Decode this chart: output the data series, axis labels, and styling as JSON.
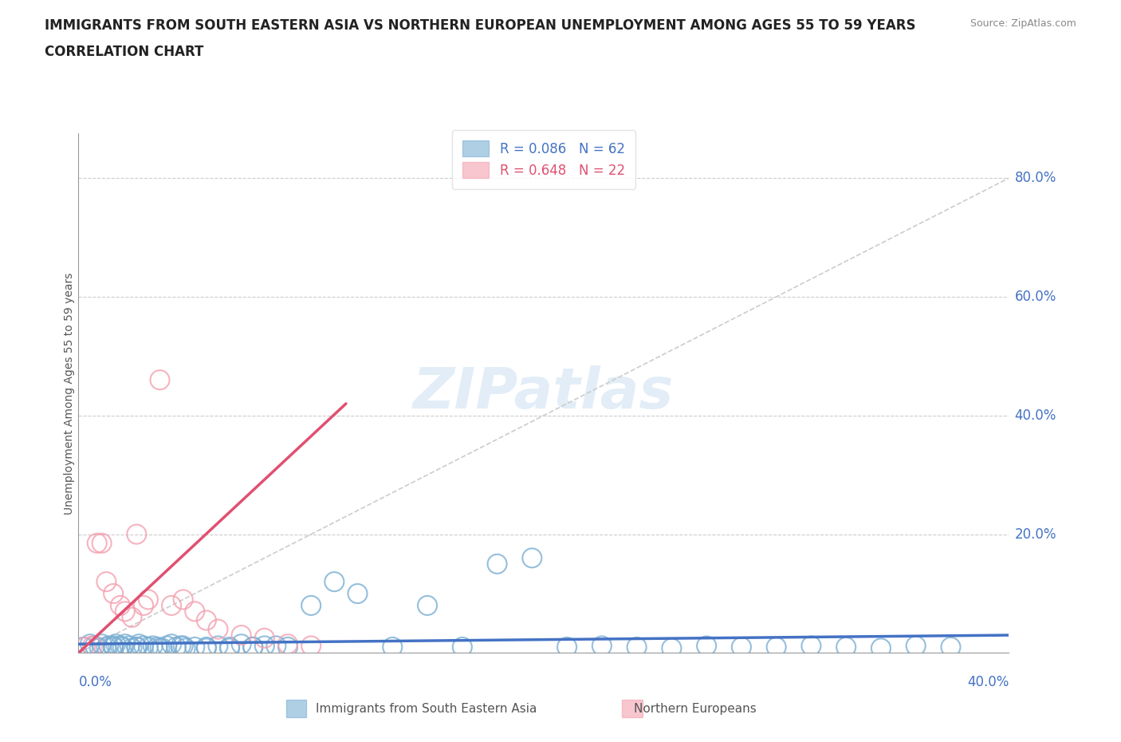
{
  "title_line1": "IMMIGRANTS FROM SOUTH EASTERN ASIA VS NORTHERN EUROPEAN UNEMPLOYMENT AMONG AGES 55 TO 59 YEARS",
  "title_line2": "CORRELATION CHART",
  "source_text": "Source: ZipAtlas.com",
  "ylabel": "Unemployment Among Ages 55 to 59 years",
  "legend_r1": "R = 0.086",
  "legend_n1": "N = 62",
  "legend_r2": "R = 0.648",
  "legend_n2": "N = 22",
  "color_blue": "#7BAFD4",
  "color_pink": "#F4A0B0",
  "color_blue_dark": "#4472C4",
  "color_pink_dark": "#E05070",
  "color_grid": "#CCCCCC",
  "label_blue": "Immigrants from South Eastern Asia",
  "label_pink": "Northern Europeans",
  "x_min": 0.0,
  "x_max": 0.4,
  "y_min": 0.0,
  "y_max": 0.875,
  "y_ticks": [
    0.2,
    0.4,
    0.6,
    0.8
  ],
  "y_tick_labels": [
    "20.0%",
    "40.0%",
    "60.0%",
    "80.0%"
  ],
  "blue_x": [
    0.002,
    0.005,
    0.007,
    0.009,
    0.01,
    0.012,
    0.013,
    0.015,
    0.016,
    0.018,
    0.019,
    0.02,
    0.022,
    0.023,
    0.025,
    0.026,
    0.028,
    0.03,
    0.032,
    0.034,
    0.036,
    0.038,
    0.04,
    0.042,
    0.044,
    0.046,
    0.05,
    0.055,
    0.06,
    0.065,
    0.07,
    0.075,
    0.08,
    0.09,
    0.1,
    0.11,
    0.12,
    0.135,
    0.15,
    0.165,
    0.18,
    0.195,
    0.21,
    0.225,
    0.24,
    0.255,
    0.27,
    0.285,
    0.3,
    0.315,
    0.33,
    0.345,
    0.36,
    0.375,
    0.015,
    0.025,
    0.035,
    0.045,
    0.055,
    0.065,
    0.075,
    0.085
  ],
  "blue_y": [
    0.01,
    0.015,
    0.012,
    0.008,
    0.015,
    0.01,
    0.012,
    0.01,
    0.015,
    0.012,
    0.01,
    0.015,
    0.012,
    0.008,
    0.01,
    0.015,
    0.012,
    0.01,
    0.012,
    0.01,
    0.008,
    0.012,
    0.015,
    0.01,
    0.012,
    0.008,
    0.01,
    0.008,
    0.012,
    0.01,
    0.015,
    0.01,
    0.012,
    0.01,
    0.08,
    0.12,
    0.1,
    0.01,
    0.08,
    0.01,
    0.15,
    0.16,
    0.01,
    0.012,
    0.01,
    0.008,
    0.012,
    0.01,
    0.01,
    0.012,
    0.01,
    0.008,
    0.012,
    0.01,
    0.012,
    0.01,
    0.008,
    0.012,
    0.01,
    0.008,
    0.01,
    0.012
  ],
  "pink_x": [
    0.003,
    0.006,
    0.008,
    0.01,
    0.012,
    0.015,
    0.018,
    0.02,
    0.023,
    0.025,
    0.028,
    0.03,
    0.035,
    0.04,
    0.045,
    0.05,
    0.055,
    0.06,
    0.07,
    0.08,
    0.09,
    0.1
  ],
  "pink_y": [
    0.01,
    0.012,
    0.185,
    0.185,
    0.12,
    0.1,
    0.08,
    0.07,
    0.06,
    0.2,
    0.08,
    0.09,
    0.46,
    0.08,
    0.09,
    0.07,
    0.055,
    0.04,
    0.03,
    0.025,
    0.015,
    0.012
  ],
  "blue_line_x": [
    0.0,
    0.4
  ],
  "blue_line_y": [
    0.015,
    0.03
  ],
  "pink_line_x": [
    0.0,
    0.115
  ],
  "pink_line_y": [
    0.0,
    0.42
  ],
  "diag_line_x": [
    0.0,
    0.4
  ],
  "diag_line_y": [
    0.0,
    0.8
  ]
}
